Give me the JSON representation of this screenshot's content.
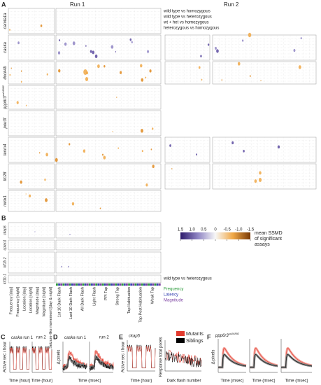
{
  "panel_a": {
    "label": "A",
    "runs": [
      "Run 1",
      "Run 2"
    ],
    "genes": [
      {
        "name": "camta1a"
      },
      {
        "name": "caska"
      },
      {
        "name": "dock4b"
      },
      {
        "name": "ppp6r3",
        "allele": "sa16892"
      },
      {
        "name": "pou3f"
      },
      {
        "name": "tenm4"
      },
      {
        "name": "ttc28"
      },
      {
        "name": "mink1"
      }
    ],
    "legend": [
      "wild type vs homozygous",
      "wild type vs heterozygous",
      "wt + het vs homozygous",
      "heterozygous vs homozygous"
    ]
  },
  "panel_b": {
    "label": "B",
    "genes": [
      "ckap5",
      "cptan1",
      "kif1b 2",
      "kif1b 1"
    ],
    "assays": [
      "Frequency [day]",
      "Frequency [night]",
      "Location [day]",
      "Location [night]",
      "Magnitude [day]",
      "Magnitude [night]",
      "Seizure-like movement [day & night]",
      "1st 10 Dark Flash",
      "Last 10 Dark Flash",
      "All Dark Flash",
      "Light Flash",
      "PPI Tap",
      "Strong Tap",
      "Tap Habituation",
      "Tap Post Habituation",
      "Weak Tap"
    ],
    "comparison": "wild type vs heterozygous",
    "measures": [
      "Frequency",
      "Latency",
      "Magnitude"
    ],
    "colorbar": {
      "title": "mean SSMD of significant assays",
      "lim": [
        1.5,
        -1.5
      ],
      "ticks": [
        1.5,
        {
          "value": 1,
          "label": "1.0"
        },
        0.5,
        0,
        -0.5,
        {
          "value": -1,
          "label": "-1.0"
        },
        -1.5
      ]
    }
  },
  "panel_c": {
    "label": "C",
    "ylabel": "Active sec / hour",
    "gene": "caska",
    "run1": "run 1",
    "run2": "run 2",
    "xlabel": "Time (hour)"
  },
  "panel_d": {
    "label": "D",
    "ylabel": "Δ pixels",
    "gene": "caska",
    "run1": "run 1",
    "run2": "run 2",
    "xlabel": "Time (msec)"
  },
  "legend": [
    "Mutants",
    "Siblings"
  ],
  "panel_e": {
    "label": "E",
    "gene": "ckap5",
    "ylabel": "Active sec / hour",
    "xlabel": "Time (hour)",
    "ylabel2": "Response total pixels",
    "xlabel2": "Dark flash number"
  },
  "panel_f": {
    "label": "F",
    "gene": "ppp6r3",
    "allele": "sa16892",
    "ylabel": "Δ pixels",
    "xlabel": "Time (msec)"
  }
}
